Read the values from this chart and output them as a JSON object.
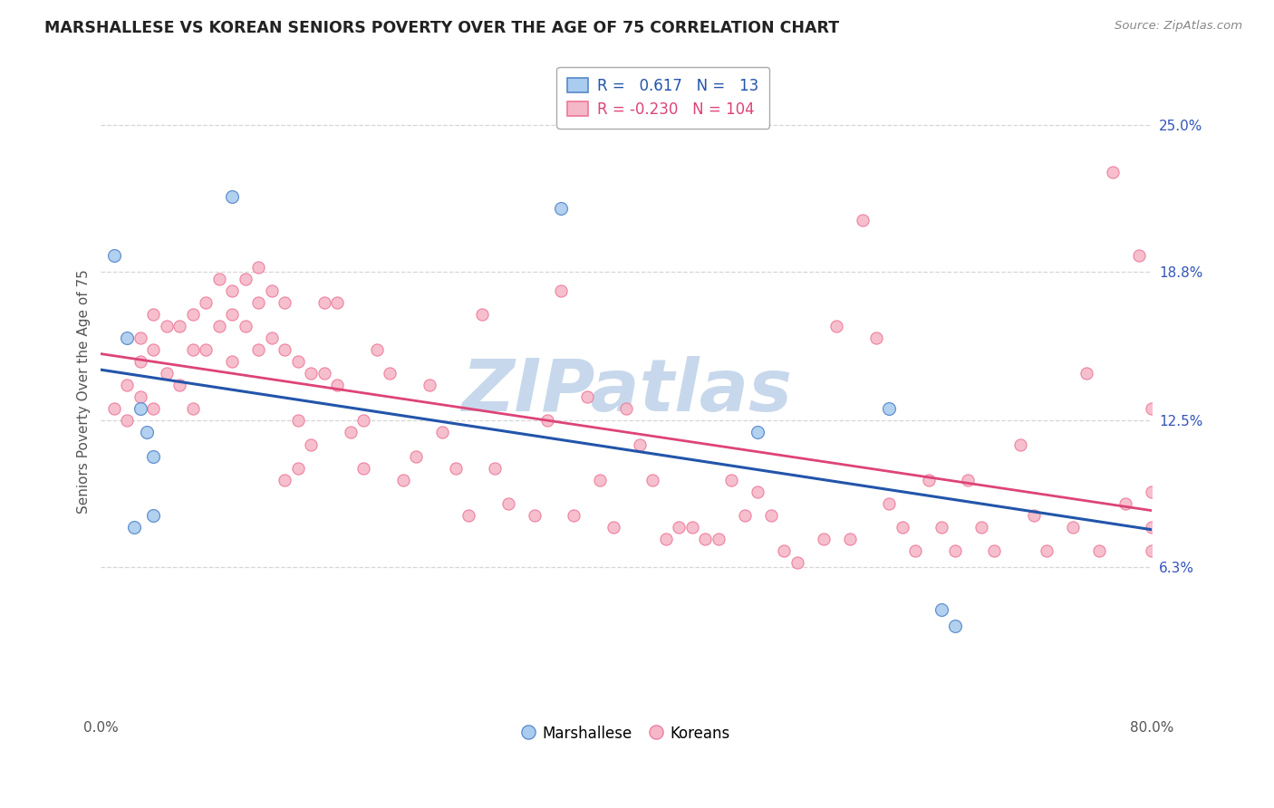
{
  "title": "MARSHALLESE VS KOREAN SENIORS POVERTY OVER THE AGE OF 75 CORRELATION CHART",
  "source": "Source: ZipAtlas.com",
  "ylabel": "Seniors Poverty Over the Age of 75",
  "right_yticks": [
    0.063,
    0.125,
    0.188,
    0.25
  ],
  "right_yticklabels": [
    "6.3%",
    "12.5%",
    "18.8%",
    "25.0%"
  ],
  "xlim": [
    0.0,
    0.8
  ],
  "ylim": [
    0.0,
    0.275
  ],
  "marshallese_r": 0.617,
  "marshallese_n": 13,
  "korean_r": -0.23,
  "korean_n": 104,
  "blue_fill": "#AACCEE",
  "pink_fill": "#F5B8C8",
  "blue_edge": "#5588CC",
  "pink_edge": "#EE7799",
  "blue_line": "#2255AA",
  "pink_line": "#DD4477",
  "watermark_text": "ZIPatlas",
  "watermark_color": "#C8D8EC",
  "marshallese_x": [
    0.01,
    0.02,
    0.025,
    0.03,
    0.035,
    0.04,
    0.04,
    0.1,
    0.35,
    0.5,
    0.6,
    0.64,
    0.65
  ],
  "marshallese_y": [
    0.195,
    0.16,
    0.08,
    0.13,
    0.12,
    0.11,
    0.085,
    0.22,
    0.215,
    0.12,
    0.13,
    0.045,
    0.038
  ],
  "korean_x": [
    0.01,
    0.02,
    0.02,
    0.03,
    0.03,
    0.03,
    0.04,
    0.04,
    0.04,
    0.05,
    0.05,
    0.06,
    0.06,
    0.07,
    0.07,
    0.07,
    0.08,
    0.08,
    0.09,
    0.09,
    0.1,
    0.1,
    0.1,
    0.11,
    0.11,
    0.12,
    0.12,
    0.12,
    0.13,
    0.13,
    0.14,
    0.14,
    0.14,
    0.15,
    0.15,
    0.15,
    0.16,
    0.16,
    0.17,
    0.17,
    0.18,
    0.18,
    0.19,
    0.2,
    0.2,
    0.21,
    0.22,
    0.23,
    0.24,
    0.25,
    0.26,
    0.27,
    0.28,
    0.29,
    0.3,
    0.31,
    0.33,
    0.34,
    0.35,
    0.36,
    0.37,
    0.38,
    0.39,
    0.4,
    0.41,
    0.42,
    0.43,
    0.44,
    0.45,
    0.46,
    0.47,
    0.48,
    0.49,
    0.5,
    0.51,
    0.52,
    0.53,
    0.55,
    0.56,
    0.57,
    0.58,
    0.59,
    0.6,
    0.61,
    0.62,
    0.63,
    0.64,
    0.65,
    0.66,
    0.67,
    0.68,
    0.7,
    0.71,
    0.72,
    0.74,
    0.75,
    0.76,
    0.77,
    0.78,
    0.79,
    0.8,
    0.8,
    0.8,
    0.8
  ],
  "korean_y": [
    0.13,
    0.14,
    0.125,
    0.16,
    0.15,
    0.135,
    0.17,
    0.155,
    0.13,
    0.165,
    0.145,
    0.165,
    0.14,
    0.17,
    0.155,
    0.13,
    0.175,
    0.155,
    0.185,
    0.165,
    0.18,
    0.17,
    0.15,
    0.185,
    0.165,
    0.19,
    0.175,
    0.155,
    0.18,
    0.16,
    0.175,
    0.155,
    0.1,
    0.15,
    0.125,
    0.105,
    0.145,
    0.115,
    0.175,
    0.145,
    0.175,
    0.14,
    0.12,
    0.125,
    0.105,
    0.155,
    0.145,
    0.1,
    0.11,
    0.14,
    0.12,
    0.105,
    0.085,
    0.17,
    0.105,
    0.09,
    0.085,
    0.125,
    0.18,
    0.085,
    0.135,
    0.1,
    0.08,
    0.13,
    0.115,
    0.1,
    0.075,
    0.08,
    0.08,
    0.075,
    0.075,
    0.1,
    0.085,
    0.095,
    0.085,
    0.07,
    0.065,
    0.075,
    0.165,
    0.075,
    0.21,
    0.16,
    0.09,
    0.08,
    0.07,
    0.1,
    0.08,
    0.07,
    0.1,
    0.08,
    0.07,
    0.115,
    0.085,
    0.07,
    0.08,
    0.145,
    0.07,
    0.23,
    0.09,
    0.195,
    0.13,
    0.095,
    0.07,
    0.08
  ]
}
